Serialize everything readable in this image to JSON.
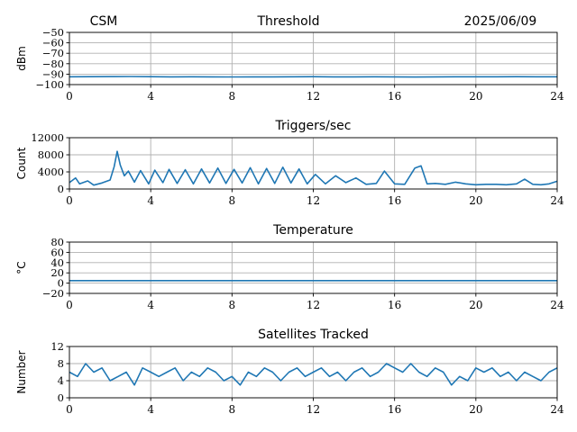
{
  "header": {
    "left": "CSM",
    "center": "Threshold",
    "right": "2025/06/09"
  },
  "colors": {
    "line": "#1f77b4",
    "grid": "#b0b0b0",
    "axes": "#000000"
  },
  "chart_data": [
    {
      "type": "line",
      "title": "Threshold",
      "xlabel": "",
      "ylabel": "dBm",
      "xlim": [
        0,
        24
      ],
      "ylim": [
        -100,
        -50
      ],
      "xticks": [
        0,
        4,
        8,
        12,
        16,
        20,
        24
      ],
      "yticks": [
        -100,
        -90,
        -80,
        -70,
        -60,
        -50
      ],
      "xtick_labels": [
        "0",
        "4",
        "8",
        "12",
        "16",
        "20",
        "24"
      ],
      "ytick_labels": [
        "−100",
        "−90",
        "−80",
        "−70",
        "−60",
        "−50"
      ],
      "grid": true,
      "series": [
        {
          "x": [
            0,
            1,
            2,
            3,
            4,
            5,
            6,
            7,
            8,
            9,
            10,
            11,
            12,
            13,
            14,
            15,
            16,
            17,
            18,
            19,
            20,
            21,
            22,
            23,
            24
          ],
          "y": [
            -92.5,
            -92.4,
            -92.3,
            -92.2,
            -92.4,
            -92.6,
            -92.5,
            -92.6,
            -92.7,
            -92.6,
            -92.6,
            -92.5,
            -92.4,
            -92.6,
            -92.6,
            -92.5,
            -92.6,
            -92.8,
            -92.6,
            -92.5,
            -92.5,
            -92.5,
            -92.4,
            -92.5,
            -92.5
          ]
        }
      ]
    },
    {
      "type": "line",
      "title": "Triggers/sec",
      "xlabel": "",
      "ylabel": "Count",
      "xlim": [
        0,
        24
      ],
      "ylim": [
        0,
        12000
      ],
      "xticks": [
        0,
        4,
        8,
        12,
        16,
        20,
        24
      ],
      "yticks": [
        0,
        4000,
        8000,
        12000
      ],
      "xtick_labels": [
        "0",
        "4",
        "8",
        "12",
        "16",
        "20",
        "24"
      ],
      "ytick_labels": [
        "0",
        "4000",
        "8000",
        "12000"
      ],
      "grid": true,
      "series": [
        {
          "x": [
            0,
            0.3,
            0.5,
            0.9,
            1.2,
            1.6,
            2.0,
            2.2,
            2.35,
            2.5,
            2.7,
            2.9,
            3.2,
            3.5,
            3.9,
            4.2,
            4.6,
            4.9,
            5.3,
            5.7,
            6.1,
            6.5,
            6.9,
            7.3,
            7.7,
            8.1,
            8.5,
            8.9,
            9.3,
            9.7,
            10.1,
            10.5,
            10.9,
            11.3,
            11.7,
            12.1,
            12.6,
            13.1,
            13.6,
            14.1,
            14.6,
            15.1,
            15.5,
            16.0,
            16.5,
            17.0,
            17.3,
            17.6,
            18.0,
            18.5,
            19.0,
            19.5,
            20.0,
            20.5,
            21.0,
            21.5,
            22.0,
            22.4,
            22.8,
            23.2,
            23.6,
            24
          ],
          "y": [
            1500,
            2600,
            1200,
            1900,
            900,
            1400,
            2100,
            5200,
            8800,
            5600,
            3100,
            4200,
            1600,
            4300,
            1200,
            4400,
            1500,
            4600,
            1300,
            4500,
            1200,
            4700,
            1400,
            4900,
            1300,
            4600,
            1400,
            5000,
            1200,
            4800,
            1300,
            5100,
            1400,
            4700,
            1200,
            3400,
            1200,
            3100,
            1500,
            2600,
            1100,
            1300,
            4200,
            1200,
            1100,
            4900,
            5400,
            1200,
            1300,
            1100,
            1600,
            1200,
            1000,
            1100,
            1100,
            1000,
            1200,
            2300,
            1100,
            1000,
            1200,
            1800
          ]
        }
      ]
    },
    {
      "type": "line",
      "title": "Temperature",
      "xlabel": "",
      "ylabel": "°C",
      "xlim": [
        0,
        24
      ],
      "ylim": [
        -20,
        80
      ],
      "xticks": [
        0,
        4,
        8,
        12,
        16,
        20,
        24
      ],
      "yticks": [
        -20,
        0,
        20,
        40,
        60,
        80
      ],
      "xtick_labels": [
        "0",
        "4",
        "8",
        "12",
        "16",
        "20",
        "24"
      ],
      "ytick_labels": [
        "−20",
        "0",
        "20",
        "40",
        "60",
        "80"
      ],
      "grid": true,
      "series": [
        {
          "x": [
            0,
            4,
            8,
            12,
            16,
            20,
            24
          ],
          "y": [
            5,
            5,
            5,
            5,
            5,
            5,
            5
          ]
        }
      ]
    },
    {
      "type": "line",
      "title": "Satellites Tracked",
      "xlabel": "",
      "ylabel": "Number",
      "xlim": [
        0,
        24
      ],
      "ylim": [
        0,
        12
      ],
      "xticks": [
        0,
        4,
        8,
        12,
        16,
        20,
        24
      ],
      "yticks": [
        0,
        4,
        8,
        12
      ],
      "xtick_labels": [
        "0",
        "4",
        "8",
        "12",
        "16",
        "20",
        "24"
      ],
      "ytick_labels": [
        "0",
        "4",
        "8",
        "12"
      ],
      "grid": true,
      "series": [
        {
          "x": [
            0,
            0.4,
            0.8,
            1.2,
            1.6,
            2.0,
            2.4,
            2.8,
            3.2,
            3.6,
            4.0,
            4.4,
            4.8,
            5.2,
            5.6,
            6.0,
            6.4,
            6.8,
            7.2,
            7.6,
            8.0,
            8.4,
            8.8,
            9.2,
            9.6,
            10.0,
            10.4,
            10.8,
            11.2,
            11.6,
            12.0,
            12.4,
            12.8,
            13.2,
            13.6,
            14.0,
            14.4,
            14.8,
            15.2,
            15.6,
            16.0,
            16.4,
            16.8,
            17.2,
            17.6,
            18.0,
            18.4,
            18.8,
            19.2,
            19.6,
            20.0,
            20.4,
            20.8,
            21.2,
            21.6,
            22.0,
            22.4,
            22.8,
            23.2,
            23.6,
            24
          ],
          "y": [
            6,
            5,
            8,
            6,
            7,
            4,
            5,
            6,
            3,
            7,
            6,
            5,
            6,
            7,
            4,
            6,
            5,
            7,
            6,
            4,
            5,
            3,
            6,
            5,
            7,
            6,
            4,
            6,
            7,
            5,
            6,
            7,
            5,
            6,
            4,
            6,
            7,
            5,
            6,
            8,
            7,
            6,
            8,
            6,
            5,
            7,
            6,
            3,
            5,
            4,
            7,
            6,
            7,
            5,
            6,
            4,
            6,
            5,
            4,
            6,
            7
          ]
        }
      ]
    }
  ]
}
